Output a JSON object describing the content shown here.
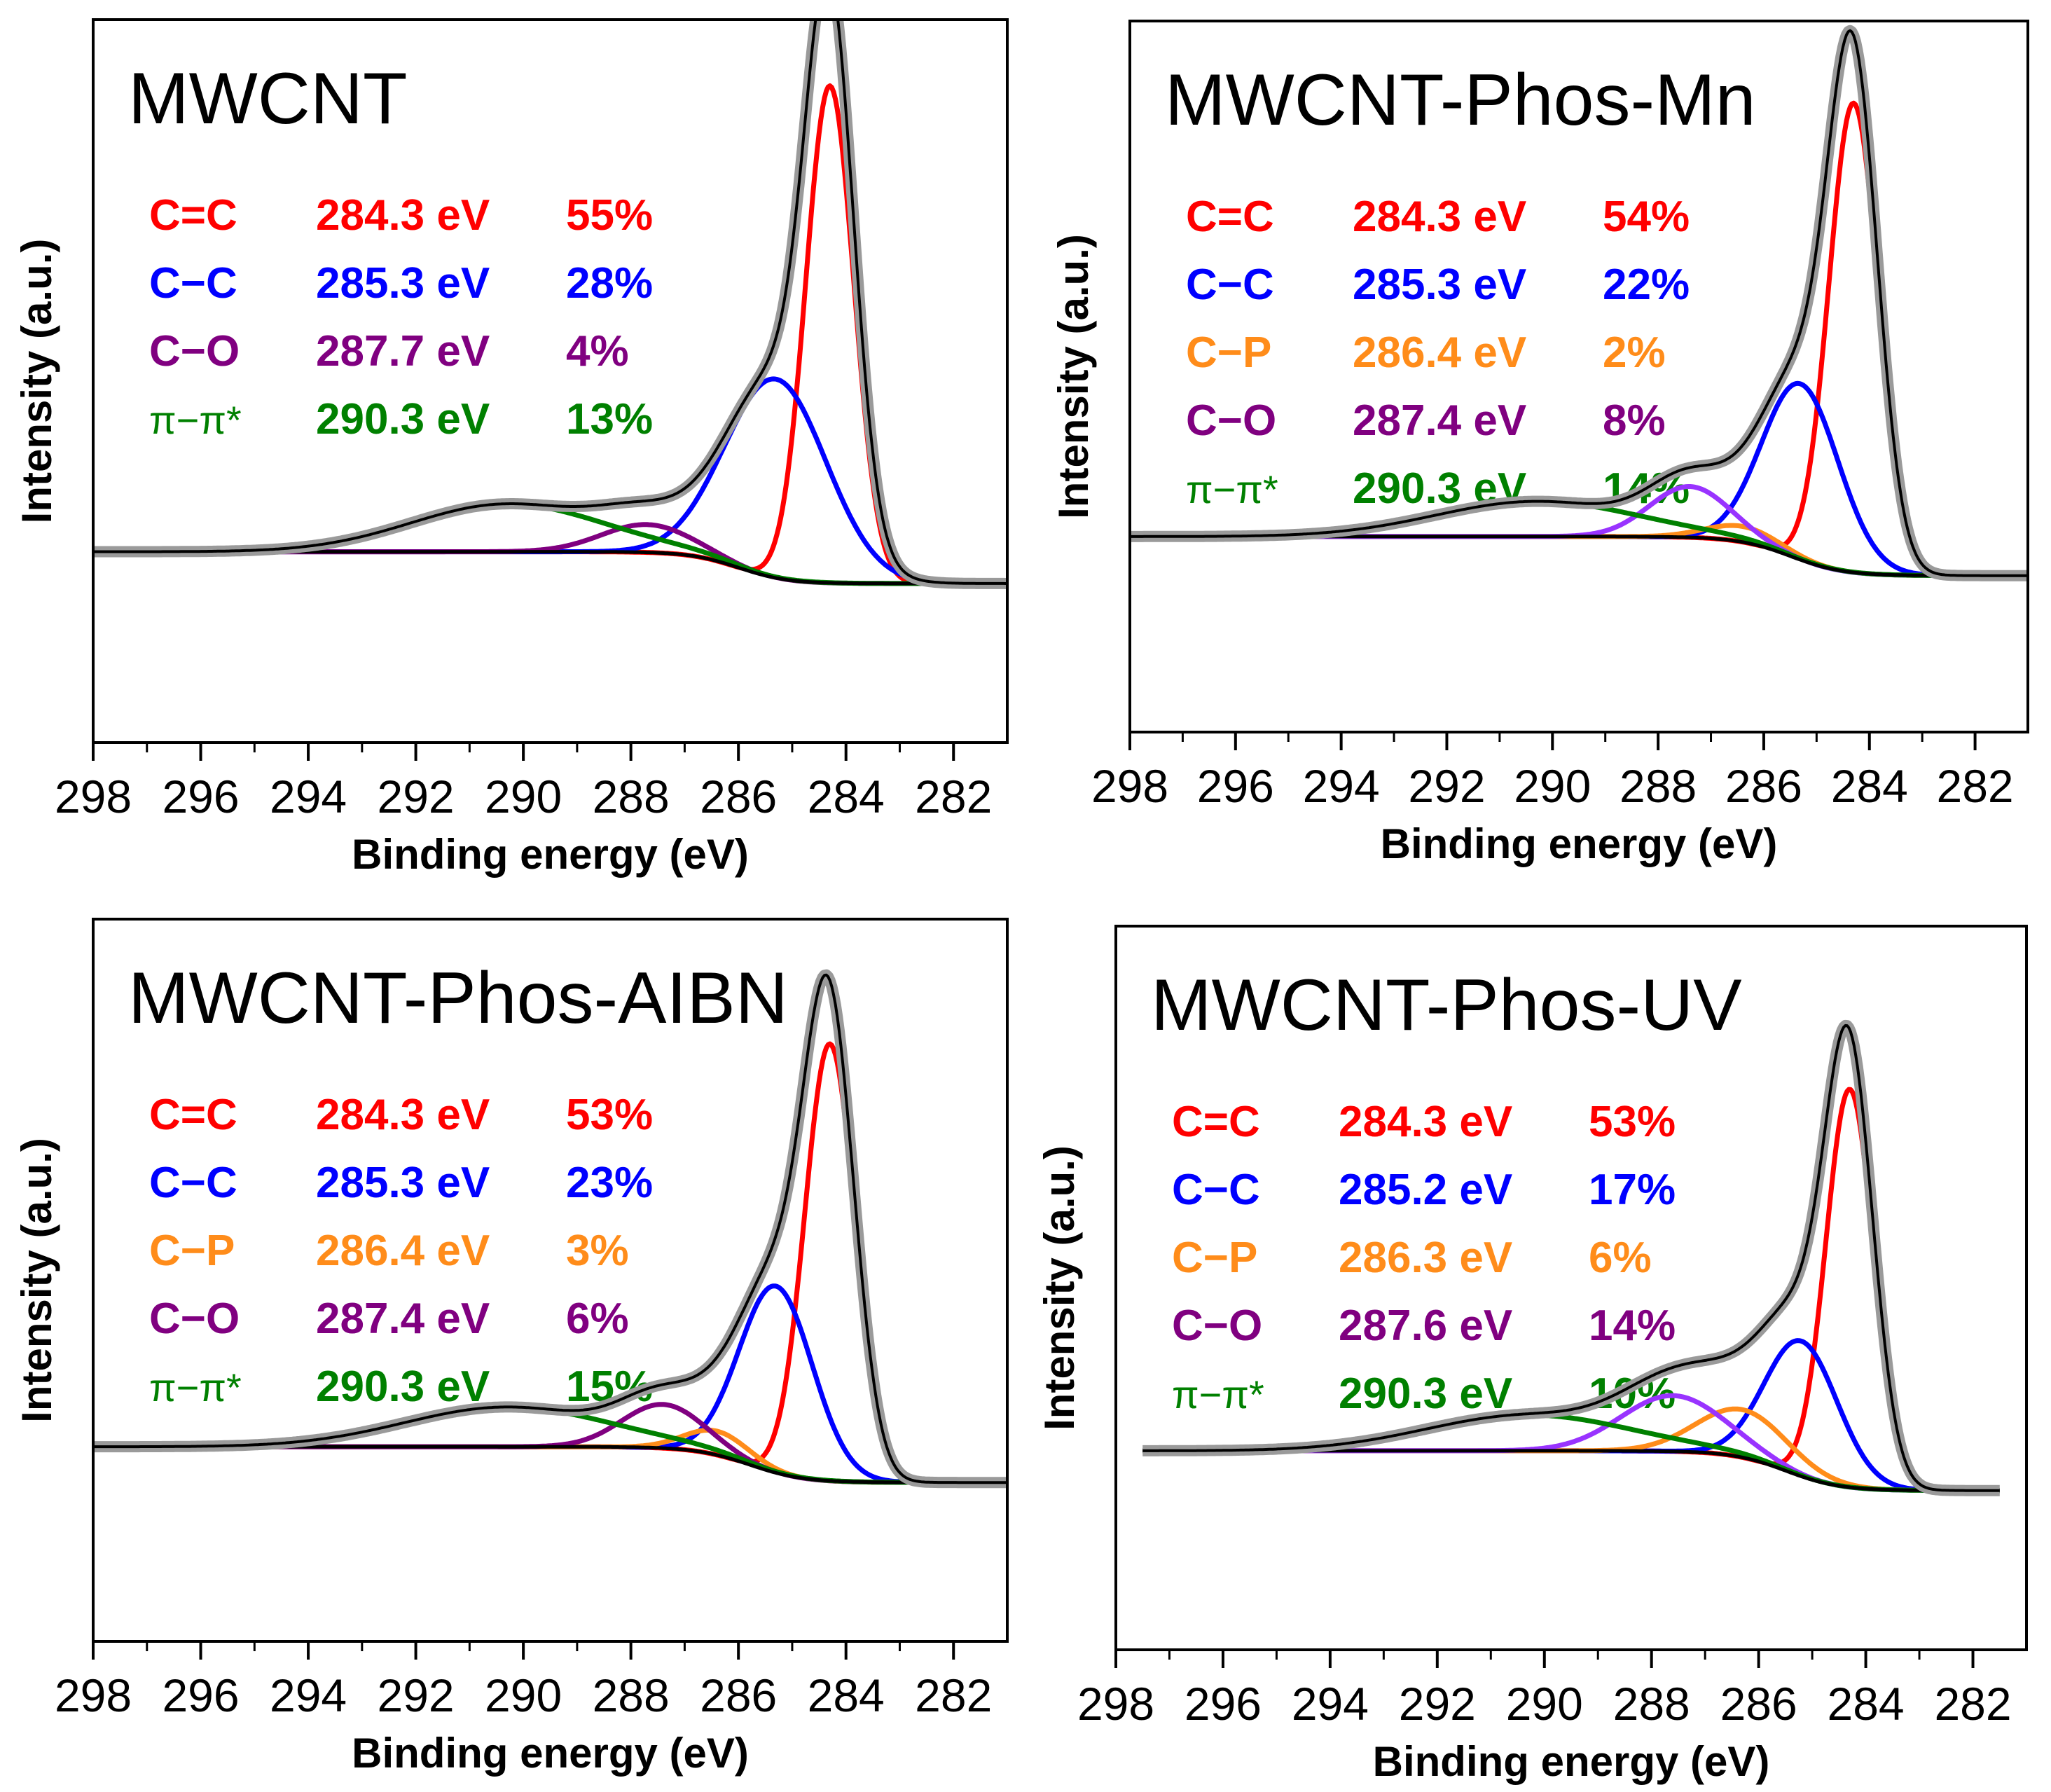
{
  "colors": {
    "cc": "#ff0000",
    "c_c": "#0000ff",
    "cp": "#ff8c1a",
    "co": "#800080",
    "co_alt": "#9933ff",
    "pi": "#008000",
    "envelope": "#000000",
    "data": "#9a9a9a"
  },
  "chart_data": [
    {
      "type": "line",
      "title": "MWCNT",
      "xlabel": "Binding energy (eV)",
      "ylabel": "Intensity (a.u.)",
      "xlim": [
        298,
        281
      ],
      "x_ticks": [
        "298",
        "296",
        "294",
        "292",
        "290",
        "288",
        "286",
        "284",
        "282"
      ],
      "baseline": {
        "start_level": 0.08,
        "end_level": 0.0,
        "step_center": 286.0,
        "step_width": 0.9,
        "x_start": 298,
        "x_end": 281
      },
      "legend": [
        {
          "label": "C=C",
          "energy": "284.3 eV",
          "percent": "55%",
          "color": "#ff0000"
        },
        {
          "label": "C−C",
          "energy": "285.3 eV",
          "percent": "28%",
          "color": "#0000ff"
        },
        {
          "label": "C−O",
          "energy": "287.7 eV",
          "percent": "4%",
          "color": "#800080"
        },
        {
          "label": "π−π*",
          "energy": "290.3 eV",
          "percent": "13%",
          "color": "#008000"
        }
      ],
      "series": [
        {
          "name": "C=C",
          "center": 284.3,
          "fwhm": 1.05,
          "height": 1.25,
          "color": "#ff0000"
        },
        {
          "name": "C−C",
          "center": 285.3,
          "fwhm": 2.2,
          "height": 0.5,
          "color": "#0000ff"
        },
        {
          "name": "C−O",
          "center": 287.7,
          "fwhm": 2.0,
          "height": 0.07,
          "color": "#800080"
        },
        {
          "name": "π−π*",
          "center": 290.3,
          "fwhm": 4.2,
          "height": 0.12,
          "color": "#008000"
        }
      ]
    },
    {
      "type": "line",
      "title": "MWCNT-Phos-Mn",
      "xlabel": "Binding energy (eV)",
      "ylabel": "Intensity (a.u.)",
      "xlim": [
        298,
        281
      ],
      "x_ticks": [
        "298",
        "296",
        "294",
        "292",
        "290",
        "288",
        "286",
        "284",
        "282"
      ],
      "baseline": {
        "start_level": 0.1,
        "end_level": 0.0,
        "step_center": 285.5,
        "step_width": 1.0,
        "x_start": 298,
        "x_end": 281
      },
      "legend": [
        {
          "label": "C=C",
          "energy": "284.3 eV",
          "percent": "54%",
          "color": "#ff0000"
        },
        {
          "label": "C−C",
          "energy": "285.3 eV",
          "percent": "22%",
          "color": "#0000ff"
        },
        {
          "label": "C−P",
          "energy": "286.4 eV",
          "percent": "2%",
          "color": "#ff8c1a"
        },
        {
          "label": "C−O",
          "energy": "287.4 eV",
          "percent": "8%",
          "color": "#800080"
        },
        {
          "label": "π−π*",
          "energy": "290.3 eV",
          "percent": "14%",
          "color": "#008000"
        }
      ],
      "series": [
        {
          "name": "C=C",
          "center": 284.3,
          "fwhm": 1.1,
          "height": 1.2,
          "color": "#ff0000"
        },
        {
          "name": "C−C",
          "center": 285.3,
          "fwhm": 1.7,
          "height": 0.45,
          "color": "#0000ff"
        },
        {
          "name": "C−P",
          "center": 286.4,
          "fwhm": 1.6,
          "height": 0.04,
          "color": "#ff8c1a"
        },
        {
          "name": "C−O",
          "center": 287.4,
          "fwhm": 1.8,
          "height": 0.13,
          "color": "#9933ff"
        },
        {
          "name": "π−π*",
          "center": 290.3,
          "fwhm": 4.5,
          "height": 0.09,
          "color": "#008000"
        }
      ]
    },
    {
      "type": "line",
      "title": "MWCNT-Phos-AIBN",
      "xlabel": "Binding energy (eV)",
      "ylabel": "Intensity (a.u.)",
      "xlim": [
        298,
        281
      ],
      "x_ticks": [
        "298",
        "296",
        "294",
        "292",
        "290",
        "288",
        "286",
        "284",
        "282"
      ],
      "baseline": {
        "start_level": 0.09,
        "end_level": 0.0,
        "step_center": 285.8,
        "step_width": 1.0,
        "x_start": 298,
        "x_end": 281
      },
      "legend": [
        {
          "label": "C=C",
          "energy": "284.3 eV",
          "percent": "53%",
          "color": "#ff0000"
        },
        {
          "label": "C−C",
          "energy": "285.3 eV",
          "percent": "23%",
          "color": "#0000ff"
        },
        {
          "label": "C−P",
          "energy": "286.4 eV",
          "percent": "3%",
          "color": "#ff8c1a"
        },
        {
          "label": "C−O",
          "energy": "287.4 eV",
          "percent": "6%",
          "color": "#800080"
        },
        {
          "label": "π−π*",
          "energy": "290.3 eV",
          "percent": "15%",
          "color": "#008000"
        }
      ],
      "series": [
        {
          "name": "C=C",
          "center": 284.3,
          "fwhm": 1.1,
          "height": 1.1,
          "color": "#ff0000"
        },
        {
          "name": "C−C",
          "center": 285.3,
          "fwhm": 1.6,
          "height": 0.47,
          "color": "#0000ff"
        },
        {
          "name": "C−P",
          "center": 286.4,
          "fwhm": 1.4,
          "height": 0.06,
          "color": "#ff8c1a"
        },
        {
          "name": "C−O",
          "center": 287.4,
          "fwhm": 1.8,
          "height": 0.11,
          "color": "#800080"
        },
        {
          "name": "π−π*",
          "center": 290.3,
          "fwhm": 4.5,
          "height": 0.1,
          "color": "#008000"
        }
      ]
    },
    {
      "type": "line",
      "title": "MWCNT-Phos-UV",
      "xlabel": "Binding energy (eV)",
      "ylabel": "Intensity (a.u.)",
      "xlim": [
        298,
        281
      ],
      "x_ticks": [
        "298",
        "296",
        "294",
        "292",
        "290",
        "288",
        "286",
        "284",
        "282"
      ],
      "baseline": {
        "start_level": 0.1,
        "end_level": 0.0,
        "step_center": 285.5,
        "step_width": 1.0,
        "x_start": 297.5,
        "x_end": 281.5
      },
      "legend": [
        {
          "label": "C=C",
          "energy": "284.3 eV",
          "percent": "53%",
          "color": "#ff0000"
        },
        {
          "label": "C−C",
          "energy": "285.2 eV",
          "percent": "17%",
          "color": "#0000ff"
        },
        {
          "label": "C−P",
          "energy": "286.3 eV",
          "percent": "6%",
          "color": "#ff8c1a"
        },
        {
          "label": "C−O",
          "energy": "287.6 eV",
          "percent": "14%",
          "color": "#800080"
        },
        {
          "label": "π−π*",
          "energy": "290.3 eV",
          "percent": "10%",
          "color": "#008000"
        }
      ],
      "series": [
        {
          "name": "C=C",
          "center": 284.3,
          "fwhm": 1.05,
          "height": 1.0,
          "color": "#ff0000"
        },
        {
          "name": "C−C",
          "center": 285.2,
          "fwhm": 1.6,
          "height": 0.34,
          "color": "#0000ff"
        },
        {
          "name": "C−P",
          "center": 286.3,
          "fwhm": 2.0,
          "height": 0.12,
          "color": "#ff8c1a"
        },
        {
          "name": "C−O",
          "center": 287.6,
          "fwhm": 2.3,
          "height": 0.14,
          "color": "#9933ff"
        },
        {
          "name": "π−π*",
          "center": 290.3,
          "fwhm": 4.5,
          "height": 0.09,
          "color": "#008000"
        }
      ]
    }
  ]
}
